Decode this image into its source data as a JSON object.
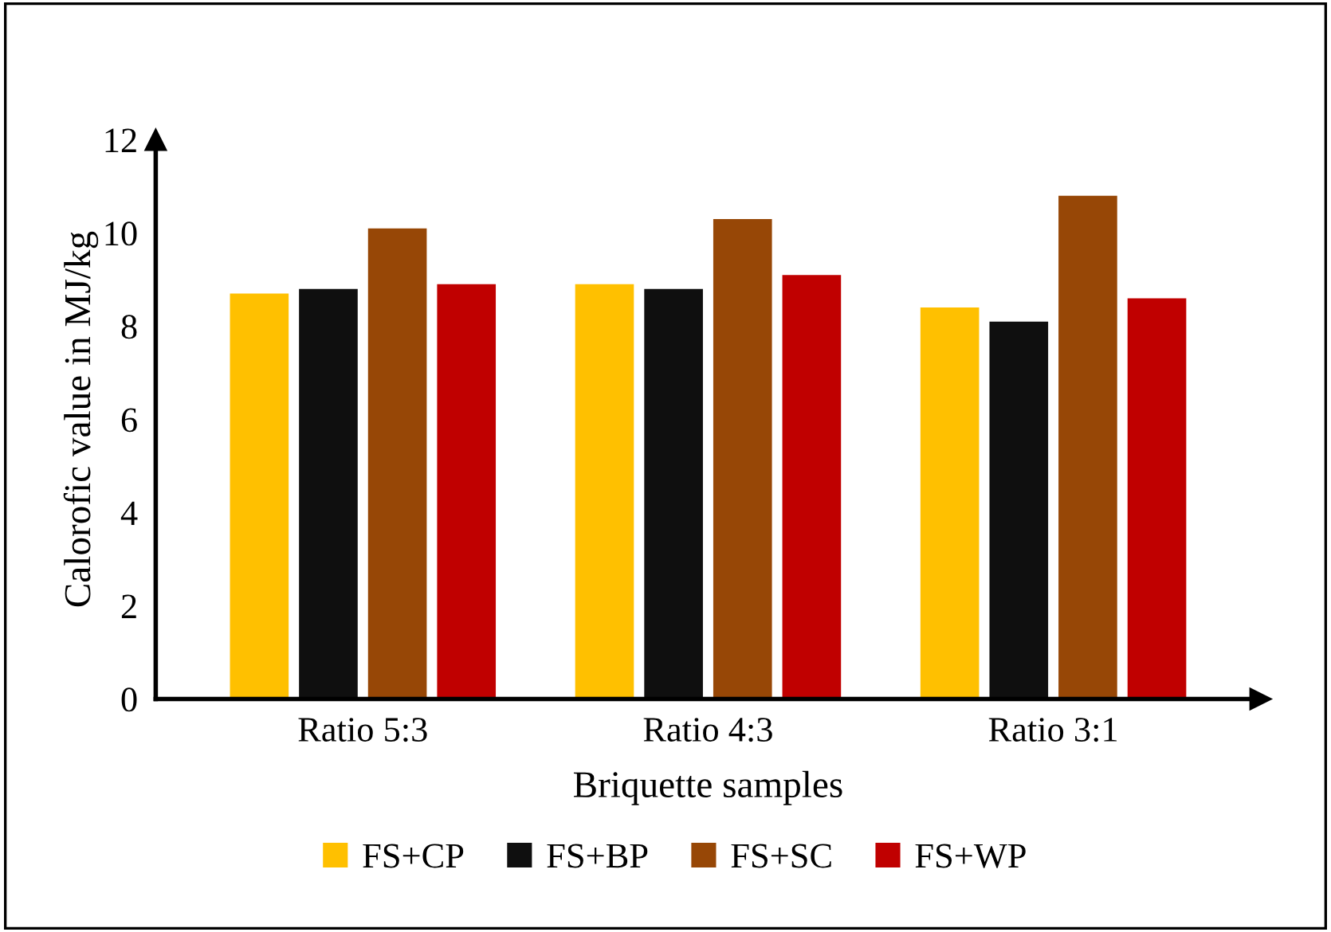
{
  "chart_data": {
    "type": "bar",
    "xlabel": "Briquette samples",
    "ylabel": "Calorofic value in MJ/kg",
    "categories": [
      "Ratio 5:3",
      "Ratio 4:3",
      "Ratio 3:1"
    ],
    "series": [
      {
        "name": "FS+CP",
        "color": "#ffc000",
        "values": [
          8.7,
          8.9,
          8.4
        ]
      },
      {
        "name": "FS+BP",
        "color": "#0f0f0f",
        "values": [
          8.8,
          8.8,
          8.1
        ]
      },
      {
        "name": "FS+SC",
        "color": "#974706",
        "values": [
          10.1,
          10.3,
          10.8
        ]
      },
      {
        "name": "FS+WP",
        "color": "#c00000",
        "values": [
          8.9,
          9.1,
          8.6
        ]
      }
    ],
    "ylim": [
      0,
      12
    ],
    "yticks": [
      0,
      2,
      4,
      6,
      8,
      10,
      12
    ],
    "grid": false,
    "legend": "bottom"
  }
}
